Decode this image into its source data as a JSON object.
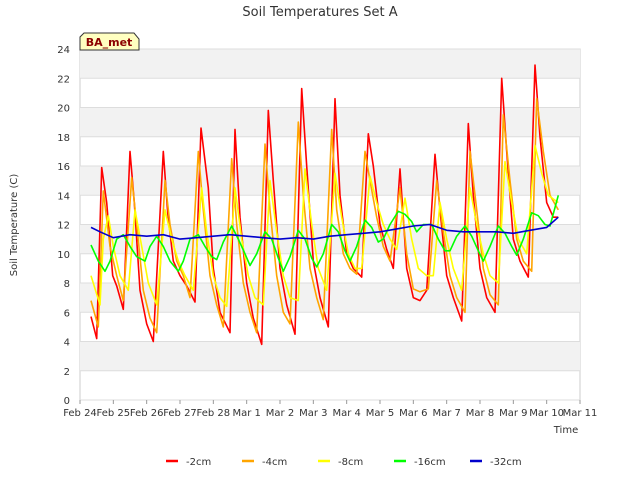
{
  "chart_data": {
    "type": "line",
    "title": "Soil Temperatures Set A",
    "xlabel": "Time",
    "ylabel": "Soil Temperature (C)",
    "badge": "BA_met",
    "ylim": [
      0,
      24
    ],
    "yticks": [
      0,
      2,
      4,
      6,
      8,
      10,
      12,
      14,
      16,
      18,
      20,
      22,
      24
    ],
    "xlim": [
      0,
      15
    ],
    "x_unit": "days from Feb 24",
    "xticks": [
      {
        "pos": 0,
        "label": "Feb 24"
      },
      {
        "pos": 1,
        "label": "Feb 25"
      },
      {
        "pos": 2,
        "label": "Feb 26"
      },
      {
        "pos": 3,
        "label": "Feb 27"
      },
      {
        "pos": 4,
        "label": "Feb 28"
      },
      {
        "pos": 5,
        "label": "Mar 1"
      },
      {
        "pos": 6,
        "label": "Mar 2"
      },
      {
        "pos": 7,
        "label": "Mar 3"
      },
      {
        "pos": 8,
        "label": "Mar 4"
      },
      {
        "pos": 9,
        "label": "Mar 5"
      },
      {
        "pos": 10,
        "label": "Mar 6"
      },
      {
        "pos": 11,
        "label": "Mar 7"
      },
      {
        "pos": 12,
        "label": "Mar 8"
      },
      {
        "pos": 13,
        "label": "Mar 9"
      },
      {
        "pos": 14,
        "label": "Mar 10"
      },
      {
        "pos": 15,
        "label": "Mar 11"
      }
    ],
    "grid": true,
    "legend_position": "bottom",
    "series": [
      {
        "name": "-2cm",
        "color": "#ff0000",
        "x": [
          0.33,
          0.5,
          0.65,
          0.8,
          0.98,
          1.1,
          1.3,
          1.5,
          1.63,
          1.8,
          2.0,
          2.2,
          2.5,
          2.63,
          2.8,
          3.0,
          3.2,
          3.45,
          3.63,
          3.85,
          4.0,
          4.2,
          4.5,
          4.65,
          4.8,
          5.0,
          5.2,
          5.45,
          5.65,
          5.8,
          6.0,
          6.2,
          6.45,
          6.65,
          6.8,
          7.0,
          7.2,
          7.45,
          7.65,
          7.8,
          8.0,
          8.2,
          8.45,
          8.65,
          8.8,
          9.0,
          9.2,
          9.4,
          9.6,
          9.8,
          10.0,
          10.2,
          10.4,
          10.65,
          10.8,
          11.0,
          11.2,
          11.45,
          11.65,
          11.8,
          12.0,
          12.2,
          12.45,
          12.65,
          12.8,
          13.0,
          13.2,
          13.45,
          13.65,
          13.8,
          14.0,
          14.2,
          14.35
        ],
        "y": [
          5.7,
          4.2,
          15.9,
          13.5,
          8.5,
          7.8,
          6.2,
          17.0,
          13.5,
          7.5,
          5.2,
          4.0,
          17.0,
          12.8,
          9.5,
          8.5,
          7.8,
          6.7,
          18.6,
          14.5,
          9.0,
          6.0,
          4.6,
          18.5,
          12.5,
          8.0,
          5.6,
          3.8,
          19.8,
          15.0,
          9.0,
          6.5,
          4.5,
          21.3,
          16.0,
          9.5,
          7.0,
          5.0,
          20.6,
          14.0,
          10.0,
          9.0,
          8.4,
          18.2,
          16.0,
          12.0,
          10.3,
          9.0,
          15.8,
          9.0,
          7.0,
          6.8,
          7.5,
          16.8,
          13.0,
          8.5,
          7.0,
          5.4,
          18.9,
          14.0,
          9.0,
          7.0,
          6.0,
          22.0,
          17.0,
          11.0,
          9.5,
          8.4,
          22.9,
          18.0,
          13.5,
          12.5,
          12.5
        ]
      },
      {
        "name": "-4cm",
        "color": "#ffa500",
        "x": [
          0.33,
          0.55,
          0.7,
          0.9,
          1.1,
          1.3,
          1.55,
          1.7,
          1.9,
          2.1,
          2.3,
          2.55,
          2.7,
          2.9,
          3.1,
          3.3,
          3.55,
          3.7,
          3.9,
          4.1,
          4.3,
          4.55,
          4.7,
          4.9,
          5.1,
          5.3,
          5.55,
          5.7,
          5.9,
          6.1,
          6.3,
          6.55,
          6.7,
          6.9,
          7.1,
          7.3,
          7.55,
          7.7,
          7.9,
          8.1,
          8.3,
          8.55,
          8.7,
          8.9,
          9.1,
          9.3,
          9.6,
          9.8,
          10.0,
          10.2,
          10.45,
          10.7,
          10.9,
          11.1,
          11.3,
          11.55,
          11.7,
          11.9,
          12.1,
          12.3,
          12.55,
          12.7,
          12.9,
          13.1,
          13.3,
          13.55,
          13.7,
          13.9,
          14.1,
          14.35
        ],
        "y": [
          6.8,
          5.0,
          14.3,
          10.5,
          8.5,
          6.8,
          15.2,
          12.0,
          7.5,
          5.6,
          4.6,
          15.0,
          12.0,
          9.5,
          8.5,
          7.0,
          17.0,
          13.0,
          8.5,
          6.5,
          5.0,
          16.5,
          12.0,
          8.0,
          6.0,
          4.6,
          17.5,
          13.0,
          8.5,
          6.0,
          5.2,
          19.0,
          14.0,
          9.0,
          7.0,
          5.5,
          18.5,
          13.0,
          10.0,
          9.0,
          8.6,
          17.0,
          15.0,
          12.5,
          10.5,
          9.5,
          14.5,
          10.0,
          7.6,
          7.4,
          7.6,
          15.0,
          11.5,
          8.5,
          7.0,
          6.0,
          17.0,
          13.0,
          9.0,
          7.2,
          6.5,
          19.5,
          15.0,
          11.0,
          9.5,
          8.8,
          20.6,
          17.0,
          14.0,
          13.0
        ]
      },
      {
        "name": "-8cm",
        "color": "#ffff00",
        "x": [
          0.33,
          0.6,
          0.7,
          0.85,
          1.0,
          1.2,
          1.45,
          1.65,
          1.85,
          2.05,
          2.3,
          2.55,
          2.75,
          2.95,
          3.15,
          3.4,
          3.65,
          3.8,
          4.0,
          4.2,
          4.4,
          4.65,
          4.85,
          5.05,
          5.25,
          5.5,
          5.7,
          5.9,
          6.1,
          6.3,
          6.55,
          6.75,
          6.95,
          7.15,
          7.4,
          7.65,
          7.85,
          8.05,
          8.25,
          8.45,
          8.7,
          8.9,
          9.1,
          9.3,
          9.5,
          9.75,
          9.95,
          10.15,
          10.4,
          10.6,
          10.8,
          11.0,
          11.2,
          11.45,
          11.7,
          11.9,
          12.1,
          12.3,
          12.55,
          12.75,
          12.95,
          13.15,
          13.4,
          13.65,
          13.85,
          14.05,
          14.35
        ],
        "y": [
          8.5,
          6.5,
          11.0,
          12.6,
          10.5,
          8.5,
          7.5,
          13.0,
          10.5,
          8.0,
          6.5,
          13.0,
          11.0,
          9.5,
          8.5,
          7.5,
          14.5,
          11.5,
          8.5,
          7.0,
          6.4,
          14.5,
          11.0,
          8.5,
          7.0,
          6.5,
          15.0,
          11.5,
          8.5,
          7.0,
          6.8,
          15.8,
          12.0,
          9.0,
          7.5,
          15.5,
          12.5,
          10.0,
          9.0,
          9.0,
          15.3,
          13.5,
          12.0,
          11.0,
          10.3,
          13.8,
          11.0,
          9.0,
          8.5,
          8.5,
          13.5,
          11.0,
          9.0,
          7.5,
          14.5,
          12.0,
          10.0,
          8.5,
          8.0,
          16.3,
          13.5,
          11.0,
          10.0,
          17.4,
          15.5,
          14.0,
          13.5
        ]
      },
      {
        "name": "-16cm",
        "color": "#00ff00",
        "x": [
          0.33,
          0.55,
          0.75,
          0.9,
          1.1,
          1.3,
          1.5,
          1.7,
          1.95,
          2.1,
          2.3,
          2.5,
          2.7,
          2.95,
          3.1,
          3.3,
          3.55,
          3.75,
          3.95,
          4.1,
          4.3,
          4.55,
          4.75,
          4.95,
          5.1,
          5.3,
          5.55,
          5.75,
          5.95,
          6.1,
          6.3,
          6.55,
          6.75,
          6.95,
          7.1,
          7.3,
          7.55,
          7.75,
          7.95,
          8.1,
          8.3,
          8.55,
          8.75,
          8.95,
          9.1,
          9.3,
          9.55,
          9.75,
          9.95,
          10.1,
          10.3,
          10.55,
          10.75,
          10.95,
          11.1,
          11.3,
          11.55,
          11.75,
          11.95,
          12.1,
          12.3,
          12.55,
          12.75,
          12.95,
          13.1,
          13.3,
          13.55,
          13.75,
          13.95,
          14.1,
          14.35
        ],
        "y": [
          10.6,
          9.5,
          8.8,
          9.5,
          11.0,
          11.3,
          10.5,
          9.8,
          9.5,
          10.5,
          11.2,
          10.5,
          9.5,
          8.8,
          9.5,
          11.0,
          11.3,
          10.5,
          9.8,
          9.6,
          10.8,
          11.9,
          11.0,
          10.0,
          9.2,
          10.0,
          11.5,
          11.0,
          9.7,
          8.8,
          9.8,
          11.6,
          11.0,
          9.7,
          9.1,
          10.0,
          12.0,
          11.5,
          10.2,
          9.5,
          10.5,
          12.3,
          11.8,
          10.8,
          11.0,
          12.0,
          12.9,
          12.7,
          12.2,
          11.5,
          12.0,
          12.0,
          11.0,
          10.2,
          10.2,
          11.2,
          11.9,
          11.2,
          10.2,
          9.5,
          10.5,
          11.9,
          11.4,
          10.5,
          9.9,
          11.0,
          12.8,
          12.6,
          12.0,
          11.9,
          14.0
        ]
      },
      {
        "name": "-32cm",
        "color": "#0000cc",
        "x": [
          0.33,
          0.6,
          1.0,
          1.5,
          2.0,
          2.5,
          3.0,
          3.5,
          4.0,
          4.5,
          5.0,
          5.5,
          6.0,
          6.5,
          7.0,
          7.5,
          8.0,
          8.5,
          9.0,
          9.5,
          10.0,
          10.5,
          11.0,
          11.5,
          12.0,
          12.5,
          13.0,
          13.5,
          14.0,
          14.35
        ],
        "y": [
          11.8,
          11.5,
          11.1,
          11.3,
          11.2,
          11.3,
          11.0,
          11.1,
          11.2,
          11.3,
          11.2,
          11.1,
          11.0,
          11.1,
          11.0,
          11.2,
          11.3,
          11.4,
          11.5,
          11.7,
          11.9,
          12.0,
          11.6,
          11.5,
          11.5,
          11.5,
          11.4,
          11.6,
          11.8,
          12.5
        ]
      }
    ]
  }
}
